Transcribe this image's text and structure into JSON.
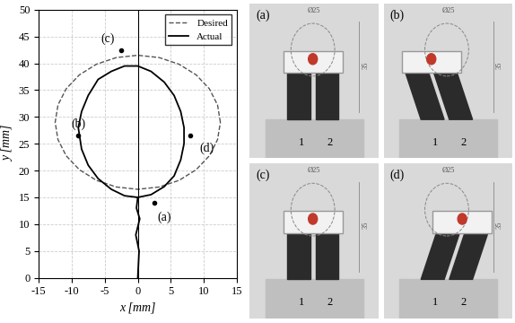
{
  "chart_data": {
    "type": "line",
    "xlabel": "x [mm]",
    "ylabel": "y [mm]",
    "xlim": [
      -15,
      15
    ],
    "ylim": [
      0,
      50
    ],
    "xticks": [
      -15,
      -10,
      -5,
      0,
      5,
      10,
      15
    ],
    "yticks": [
      0,
      5,
      10,
      15,
      20,
      25,
      30,
      35,
      40,
      45,
      50
    ],
    "grid": true,
    "legend": "upper right",
    "series": [
      {
        "name": "Desired",
        "color": "#555555",
        "line_style": "dashed",
        "x": [
          12.5,
          12.07,
          10.83,
          8.84,
          6.25,
          3.24,
          0,
          -3.24,
          -6.25,
          -8.84,
          -10.83,
          -12.07,
          -12.5,
          -12.07,
          -10.83,
          -8.84,
          -6.25,
          -3.24,
          0,
          3.24,
          6.25,
          8.84,
          10.83,
          12.07,
          12.5
        ],
        "values": [
          29,
          32.24,
          35.25,
          37.84,
          39.83,
          41.07,
          41.5,
          41.07,
          39.83,
          37.84,
          35.25,
          32.24,
          29,
          25.76,
          22.75,
          20.16,
          18.17,
          16.93,
          16.5,
          16.93,
          18.17,
          20.16,
          22.75,
          25.76,
          29
        ]
      },
      {
        "name": "Actual",
        "color": "#000000",
        "line_style": "solid",
        "x": [
          0,
          0.2,
          -0.3,
          0.3,
          -0.2,
          0,
          2,
          4,
          5.5,
          6.5,
          7,
          7,
          6.5,
          5.5,
          4,
          2,
          0,
          -2,
          -4,
          -6,
          -7.5,
          -8.5,
          -9,
          -8.5,
          -7.5,
          -6,
          -4,
          -2,
          0
        ],
        "values": [
          0,
          5,
          8,
          11,
          13,
          15,
          15.5,
          17,
          19,
          22,
          25,
          28,
          31,
          34,
          36.5,
          38.5,
          39.5,
          39.5,
          38.5,
          37,
          34,
          31,
          28,
          24,
          21,
          18.5,
          16.5,
          15.3,
          15
        ]
      }
    ],
    "annotations": [
      {
        "text": "(a)",
        "x": 2.5,
        "y": 14
      },
      {
        "text": "(b)",
        "x": -9,
        "y": 26.5
      },
      {
        "text": "(c)",
        "x": -2.5,
        "y": 42.5
      },
      {
        "text": "(d)",
        "x": 8,
        "y": 26.5
      }
    ]
  },
  "photos": {
    "panels": [
      {
        "label": "(a)",
        "diameter": "Ø25",
        "height": "35",
        "rods": [
          "1",
          "2"
        ]
      },
      {
        "label": "(b)",
        "diameter": "Ø25",
        "height": "35",
        "rods": [
          "1",
          "2"
        ]
      },
      {
        "label": "(c)",
        "diameter": "Ø25",
        "height": "35",
        "rods": [
          "1",
          "2"
        ]
      },
      {
        "label": "(d)",
        "diameter": "Ø25",
        "height": "35",
        "rods": [
          "1",
          "2"
        ]
      }
    ]
  }
}
